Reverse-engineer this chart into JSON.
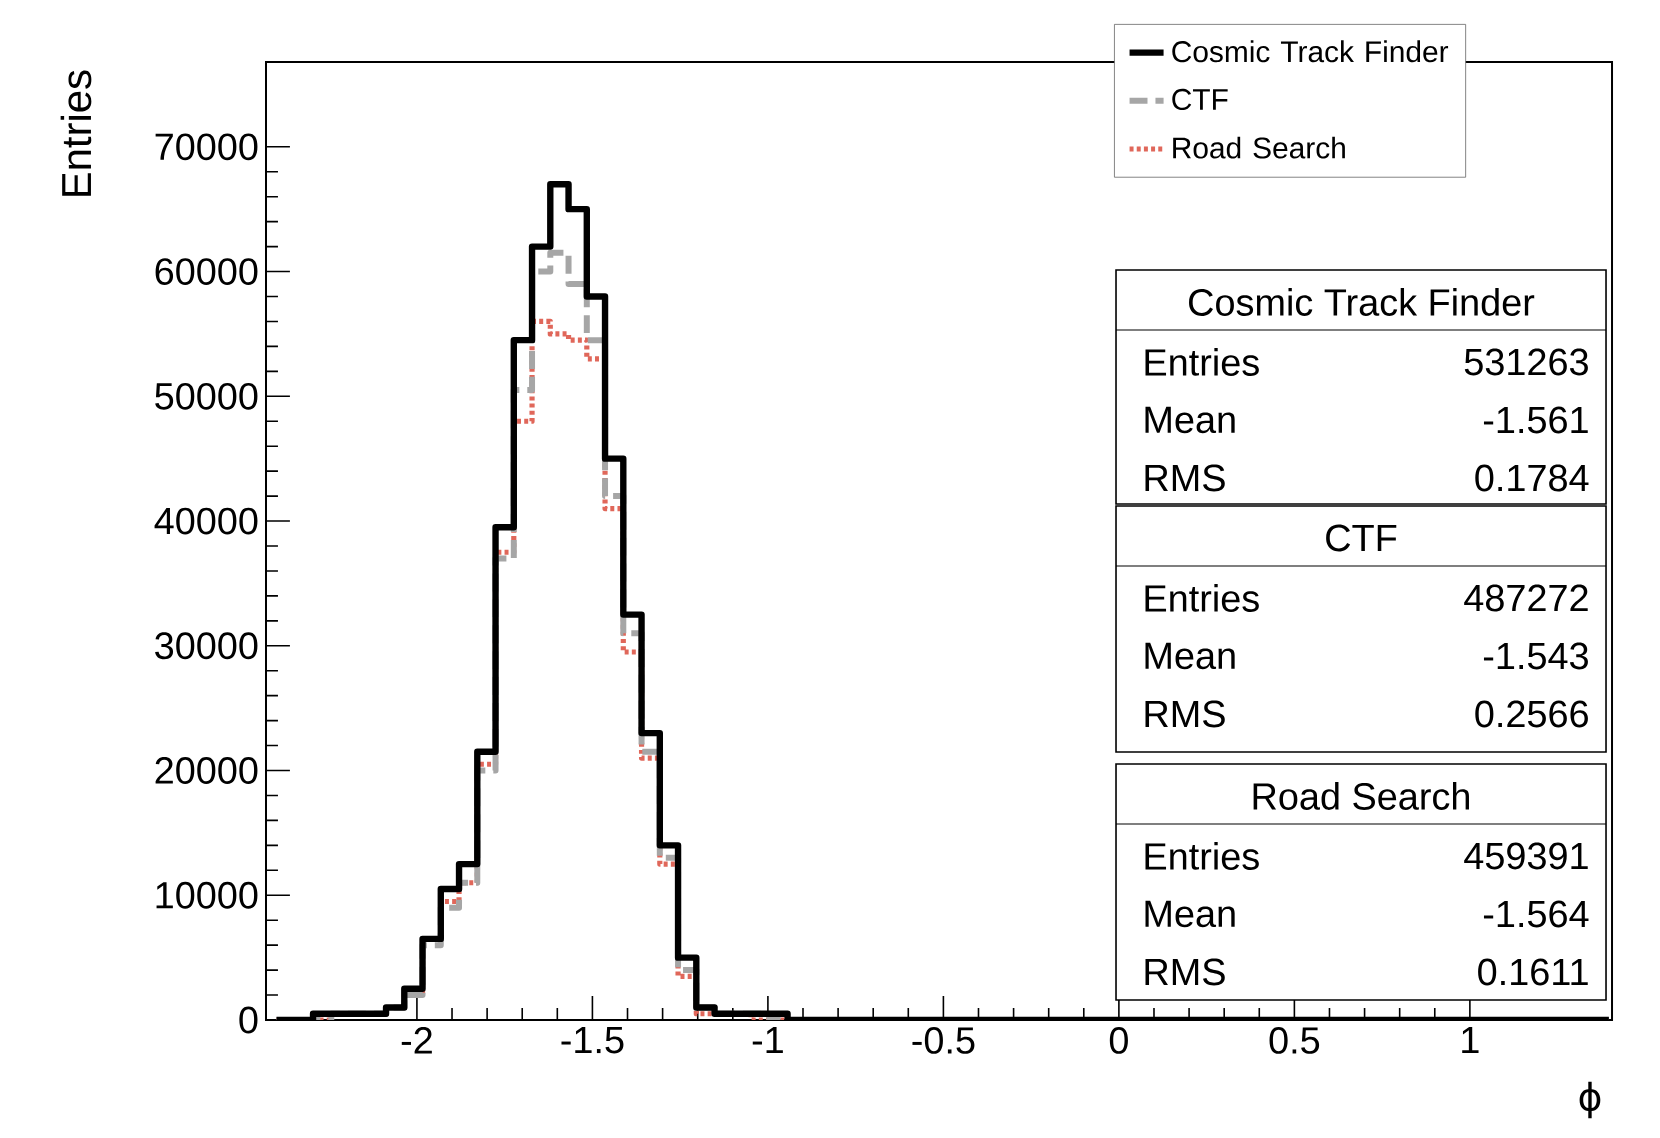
{
  "chart_data": {
    "type": "histogram",
    "xlabel": "ϕ",
    "ylabel": "Entries",
    "bins": [
      -2.4,
      -2.348,
      -2.296,
      -2.244,
      -2.192,
      -2.14,
      -2.088,
      -2.036,
      -1.984,
      -1.932,
      -1.88,
      -1.828,
      -1.776,
      -1.724,
      -1.672,
      -1.62,
      -1.568,
      -1.516,
      -1.464,
      -1.412,
      -1.36,
      -1.308,
      -1.256,
      -1.204,
      -1.152,
      -1.1,
      -1.048,
      -0.996,
      -0.944,
      -0.892,
      -0.84,
      -0.788,
      -0.736,
      -0.684,
      -0.632,
      -0.58,
      -0.528,
      -0.476,
      -0.424,
      -0.372,
      -0.32,
      -0.268,
      -0.216,
      -0.164,
      -0.112,
      -0.06,
      -0.008,
      0.044,
      0.096,
      0.148,
      0.2,
      0.252,
      0.304,
      0.356,
      0.408,
      0.46,
      0.512,
      0.564,
      0.616,
      0.668,
      0.72,
      0.772,
      0.824,
      0.876,
      0.928,
      0.98,
      1.032,
      1.084,
      1.136,
      1.188,
      1.24,
      1.292,
      1.344,
      1.396
    ],
    "series": [
      {
        "name": "Cosmic Track Finder",
        "color": "#000000",
        "line_style": "solid",
        "values": [
          0,
          0,
          500,
          500,
          500,
          500,
          1000,
          2500,
          6500,
          10500,
          12500,
          21500,
          39500,
          54500,
          62000,
          67000,
          65000,
          58000,
          45000,
          32500,
          23000,
          14000,
          5000,
          1000,
          500,
          500,
          500,
          500,
          0,
          0,
          0,
          0,
          0,
          0,
          0,
          0,
          0,
          0,
          0,
          0,
          0,
          0,
          0,
          0,
          0,
          0,
          0,
          0,
          0,
          0,
          0,
          0,
          0,
          0,
          0,
          0,
          0,
          0,
          0,
          0,
          0,
          0,
          0,
          0,
          0,
          0,
          0,
          0,
          0,
          0,
          0,
          0,
          0
        ]
      },
      {
        "name": "CTF",
        "color": "#a6a6a6",
        "line_style": "dashed",
        "values": [
          0,
          0,
          0,
          500,
          500,
          500,
          1000,
          2000,
          6000,
          9000,
          11000,
          20000,
          37000,
          50500,
          60000,
          61500,
          59000,
          54500,
          42000,
          31000,
          21500,
          13000,
          4000,
          1000,
          500,
          500,
          500,
          0,
          0,
          0,
          0,
          0,
          0,
          0,
          0,
          0,
          0,
          0,
          0,
          0,
          0,
          0,
          0,
          0,
          0,
          0,
          0,
          0,
          0,
          0,
          0,
          0,
          0,
          0,
          0,
          0,
          0,
          0,
          0,
          0,
          0,
          0,
          0,
          0,
          0,
          0,
          0,
          0,
          0,
          0,
          0,
          0,
          0
        ]
      },
      {
        "name": "Road Search",
        "color": "#e0675a",
        "line_style": "dotted",
        "values": [
          0,
          0,
          0,
          500,
          500,
          500,
          1000,
          2000,
          6500,
          9500,
          11000,
          20500,
          37500,
          48000,
          56000,
          55000,
          54500,
          53000,
          41000,
          29500,
          21000,
          12500,
          3500,
          500,
          500,
          500,
          0,
          0,
          0,
          0,
          0,
          0,
          0,
          0,
          0,
          0,
          0,
          0,
          0,
          0,
          0,
          0,
          0,
          0,
          0,
          0,
          0,
          0,
          0,
          0,
          0,
          0,
          0,
          0,
          0,
          0,
          0,
          0,
          0,
          0,
          0,
          0,
          0,
          0,
          0,
          0,
          0,
          0,
          0,
          0,
          0,
          0,
          0
        ]
      }
    ],
    "xlim": [
      -2.43,
      1.405
    ],
    "ylim": [
      0,
      76800
    ],
    "xticks": [
      -2,
      -1.5,
      -1,
      -0.5,
      0,
      0.5,
      1
    ],
    "yticks": [
      0,
      10000,
      20000,
      30000,
      40000,
      50000,
      60000,
      70000
    ],
    "legend": "top right",
    "annotations": [
      "Cosmic Track Finder",
      "Entries",
      "531263",
      "Mean",
      "-1.561",
      "RMS",
      "0.1784",
      "CTF",
      "Entries",
      "487272",
      "Mean",
      "-1.543",
      "RMS",
      "0.2566",
      "Road Search",
      "Entries",
      "459391",
      "Mean",
      "-1.564",
      "RMS",
      "0.1611"
    ]
  }
}
